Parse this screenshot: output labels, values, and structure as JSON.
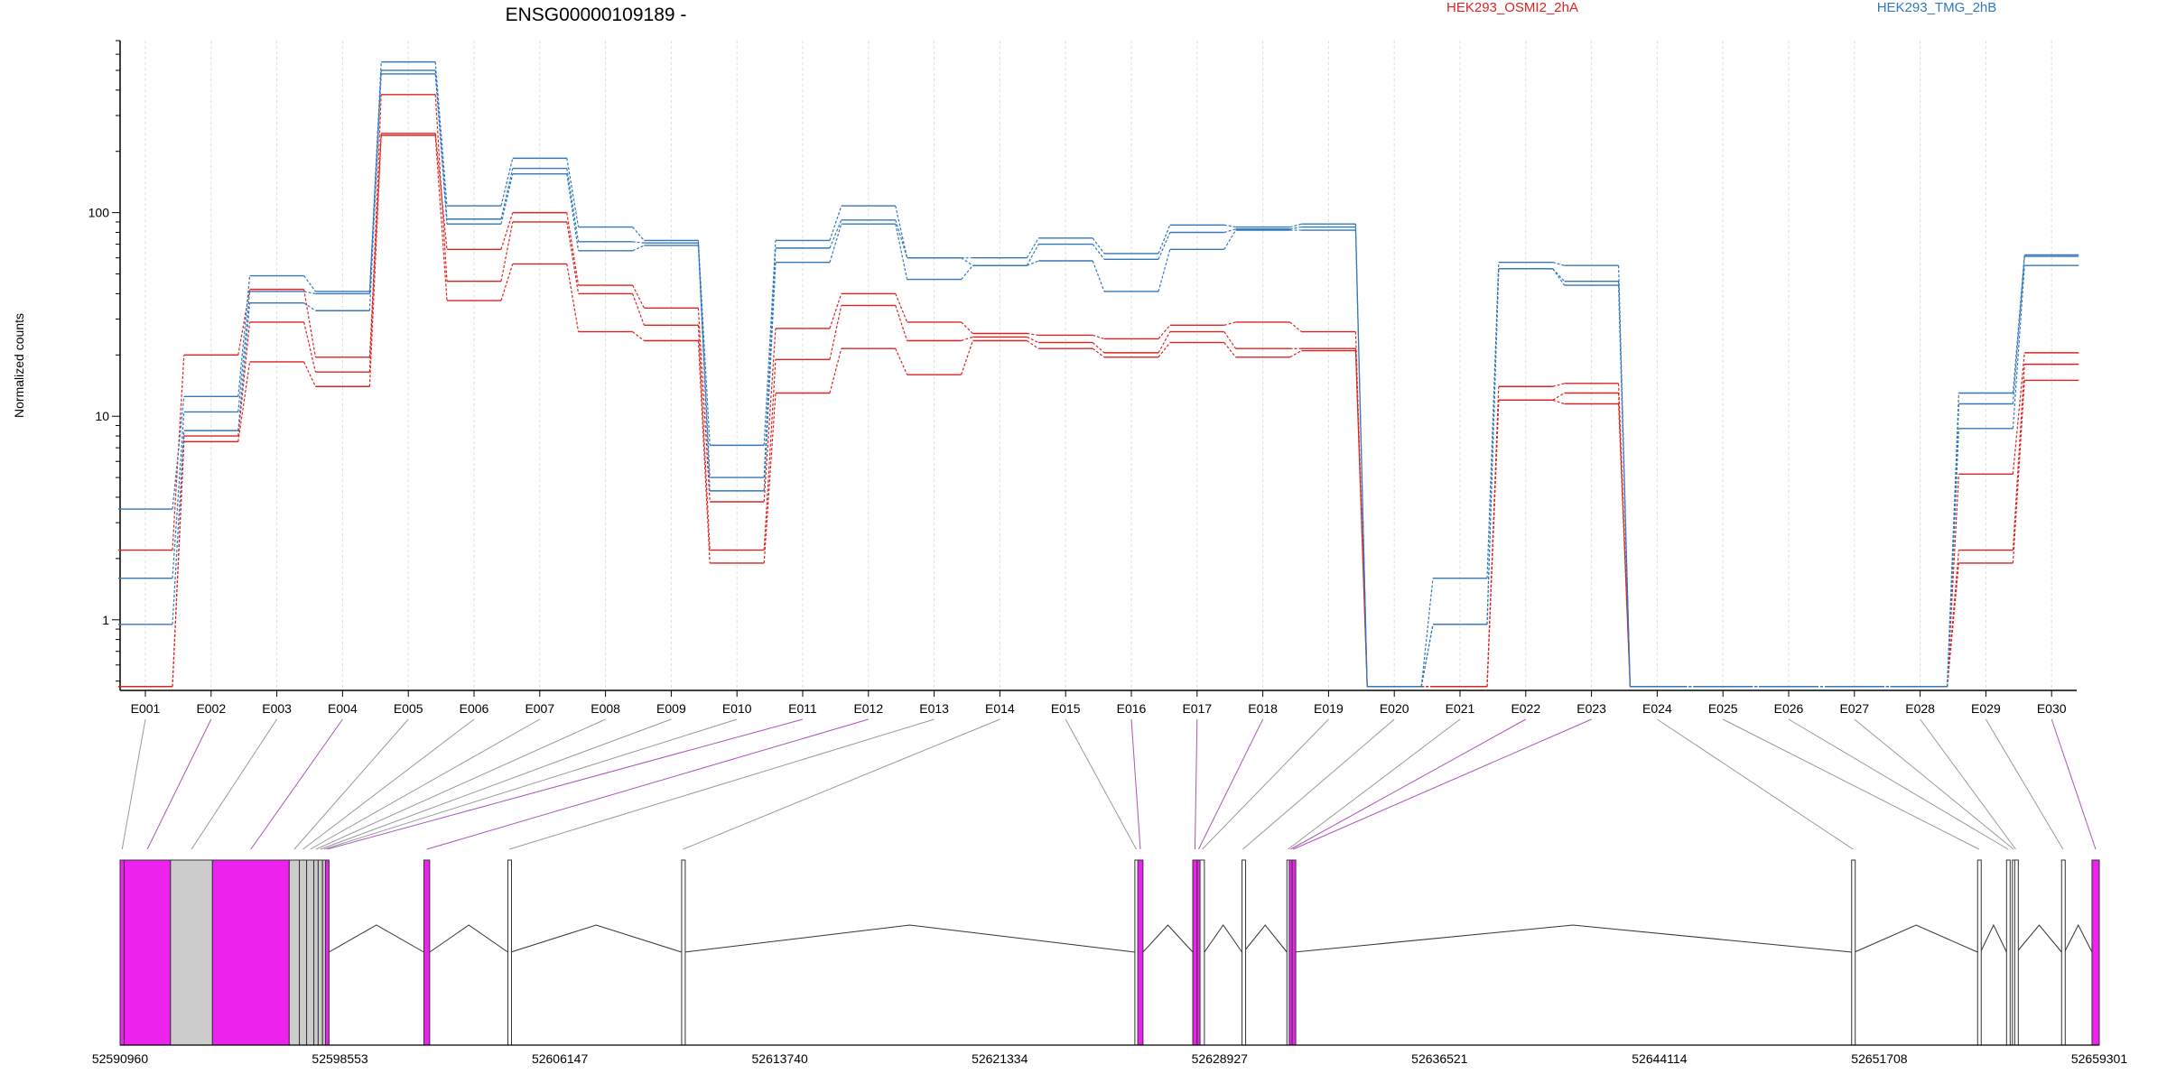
{
  "chart_data": {
    "type": "line",
    "title": "ENSG00000109189 -",
    "ylabel": "Normalized counts",
    "xlabel": "",
    "y_scale": "log",
    "ylim": [
      0.45,
      700
    ],
    "y_ticks": [
      {
        "value": 1,
        "label": "1"
      },
      {
        "value": 10,
        "label": "10"
      },
      {
        "value": 100,
        "label": "100"
      }
    ],
    "grid": "vertical light dotted lines at each exon",
    "legend_placement": "top",
    "colors": {
      "HEK293_OSMI2_2hA": "#dd2222",
      "HEK293_TMG_2hB": "#3377bb",
      "exon_fill": "#ee22ee",
      "exon_other": "#cccccc",
      "connector_sig": "#aa55bb",
      "connector": "#999999"
    },
    "categories": [
      "E001",
      "E002",
      "E003",
      "E004",
      "E005",
      "E006",
      "E007",
      "E008",
      "E009",
      "E010",
      "E011",
      "E012",
      "E013",
      "E014",
      "E015",
      "E016",
      "E017",
      "E018",
      "E019",
      "E020",
      "E021",
      "E022",
      "E023",
      "E024",
      "E025",
      "E026",
      "E027",
      "E028",
      "E029",
      "E030"
    ],
    "series": [
      {
        "name": "HEK293_OSMI2_2hA",
        "group": "HEK293_OSMI2_2hA",
        "values": [
          2.2,
          20,
          42,
          19.5,
          245,
          66,
          100,
          44,
          34,
          3.8,
          27,
          40,
          29,
          25.5,
          25,
          24,
          28,
          29,
          26,
          0.47,
          0.47,
          14,
          14.5,
          0.47,
          0.47,
          0.47,
          0.47,
          0.47,
          5.2,
          20.5
        ]
      },
      {
        "name": "HEK293_OSMI2_2hA",
        "group": "HEK293_OSMI2_2hA",
        "values": [
          0.47,
          8,
          29,
          16.5,
          380,
          46,
          90,
          40,
          28,
          2.2,
          19,
          35,
          23.5,
          24.5,
          23,
          20.5,
          26,
          21.5,
          21.5,
          0.47,
          0.47,
          12,
          13,
          0.47,
          0.47,
          0.47,
          0.47,
          0.47,
          2.2,
          18
        ]
      },
      {
        "name": "HEK293_OSMI2_2hA",
        "group": "HEK293_OSMI2_2hA",
        "values": [
          0.47,
          7.5,
          18.5,
          14,
          240,
          37,
          56,
          26,
          23.5,
          1.9,
          13,
          21.5,
          16,
          23.5,
          21.5,
          19.5,
          23,
          19.5,
          21,
          0.47,
          0.47,
          12,
          11.5,
          0.47,
          0.47,
          0.47,
          0.47,
          0.47,
          1.9,
          15
        ]
      },
      {
        "name": "HEK293_TMG_2hB",
        "group": "HEK293_TMG_2hB",
        "values": [
          3.5,
          12.5,
          49,
          41,
          550,
          108,
          185,
          85,
          73,
          7.2,
          73,
          108,
          60,
          60,
          75,
          63,
          87,
          85,
          88,
          0.47,
          1.6,
          57,
          55,
          0.47,
          0.47,
          0.47,
          0.47,
          0.47,
          13,
          62
        ]
      },
      {
        "name": "HEK293_TMG_2hB",
        "group": "HEK293_TMG_2hB",
        "values": [
          1.6,
          10.5,
          41,
          40,
          500,
          93,
          165,
          72,
          71,
          5,
          67,
          92,
          60,
          55,
          70,
          59,
          80,
          83,
          85,
          0.47,
          0.95,
          53,
          46,
          0.47,
          0.47,
          0.47,
          0.47,
          0.47,
          11.5,
          61
        ]
      },
      {
        "name": "HEK293_TMG_2hB",
        "group": "HEK293_TMG_2hB",
        "values": [
          0.95,
          8.5,
          36,
          33,
          480,
          88,
          155,
          65,
          69,
          4.3,
          57,
          88,
          47,
          55,
          58,
          41,
          66,
          82,
          82,
          0.47,
          0.95,
          53,
          44,
          0.47,
          0.47,
          0.47,
          0.47,
          0.47,
          8.7,
          55
        ]
      }
    ],
    "legend": [
      {
        "label": "HEK293_OSMI2_2hA",
        "color": "#dd2222"
      },
      {
        "label": "HEK293_TMG_2hB",
        "color": "#3377bb"
      }
    ],
    "genomic_axis": {
      "start": 52590960,
      "end": 52659301,
      "tick_labels": [
        "52590960",
        "52598553",
        "52606147",
        "52613740",
        "52621334",
        "52628927",
        "52636521",
        "52644114",
        "52651708",
        "52659301"
      ]
    },
    "exons": [
      {
        "id": "E001",
        "start": 52590960,
        "end": 52591100,
        "color": "#ee22ee",
        "highlight": false
      },
      {
        "id": "E002",
        "start": 52591100,
        "end": 52592700,
        "color": "#ee22ee",
        "highlight": true
      },
      {
        "id": "E003",
        "start": 52592700,
        "end": 52594150,
        "color": "#cccccc",
        "highlight": false
      },
      {
        "id": "E004",
        "start": 52594150,
        "end": 52596800,
        "color": "#ee22ee",
        "highlight": true
      },
      {
        "id": "E005",
        "start": 52596800,
        "end": 52597150,
        "color": "#cccccc",
        "highlight": false
      },
      {
        "id": "E006",
        "start": 52597150,
        "end": 52597400,
        "color": "#cccccc",
        "highlight": false
      },
      {
        "id": "E007",
        "start": 52597400,
        "end": 52597650,
        "color": "#cccccc",
        "highlight": false
      },
      {
        "id": "E008",
        "start": 52597650,
        "end": 52597800,
        "color": "#cccccc",
        "highlight": false
      },
      {
        "id": "E009",
        "start": 52597800,
        "end": 52597950,
        "color": "#cccccc",
        "highlight": false
      },
      {
        "id": "E010",
        "start": 52597950,
        "end": 52598050,
        "color": "#cccccc",
        "highlight": false
      },
      {
        "id": "E011",
        "start": 52598050,
        "end": 52598170,
        "color": "#ee22ee",
        "highlight": true
      },
      {
        "id": "E012",
        "start": 52601450,
        "end": 52601650,
        "color": "#ee22ee",
        "highlight": true
      },
      {
        "id": "E013",
        "start": 52604350,
        "end": 52604450,
        "color": "#ffffff",
        "highlight": false
      },
      {
        "id": "E014",
        "start": 52610350,
        "end": 52610450,
        "color": "#ffffff",
        "highlight": false
      },
      {
        "id": "E015",
        "start": 52626000,
        "end": 52626100,
        "color": "#ffffff",
        "highlight": false
      },
      {
        "id": "E016",
        "start": 52626100,
        "end": 52626280,
        "color": "#ee22ee",
        "highlight": true
      },
      {
        "id": "E017",
        "start": 52628000,
        "end": 52628150,
        "color": "#ee22ee",
        "highlight": true
      },
      {
        "id": "E018",
        "start": 52628150,
        "end": 52628250,
        "color": "#ee22ee",
        "highlight": true
      },
      {
        "id": "E019",
        "start": 52628250,
        "end": 52628400,
        "color": "#ffffff",
        "highlight": false
      },
      {
        "id": "E020",
        "start": 52629700,
        "end": 52629750,
        "color": "#ffffff",
        "highlight": false
      },
      {
        "id": "E021",
        "start": 52631250,
        "end": 52631330,
        "color": "#ffffff",
        "highlight": false
      },
      {
        "id": "E022",
        "start": 52631330,
        "end": 52631430,
        "color": "#ee22ee",
        "highlight": true
      },
      {
        "id": "E023",
        "start": 52631430,
        "end": 52631500,
        "color": "#ee22ee",
        "highlight": true
      },
      {
        "id": "E024",
        "start": 52650750,
        "end": 52650850,
        "color": "#ffffff",
        "highlight": false
      },
      {
        "id": "E025",
        "start": 52655100,
        "end": 52655200,
        "color": "#ffffff",
        "highlight": false
      },
      {
        "id": "E026",
        "start": 52656100,
        "end": 52656200,
        "color": "#ffffff",
        "highlight": false
      },
      {
        "id": "E027",
        "start": 52656300,
        "end": 52656380,
        "color": "#ffffff",
        "highlight": false
      },
      {
        "id": "E028",
        "start": 52656380,
        "end": 52656450,
        "color": "#ffffff",
        "highlight": false
      },
      {
        "id": "E029",
        "start": 52658000,
        "end": 52658100,
        "color": "#ffffff",
        "highlight": false
      },
      {
        "id": "E030",
        "start": 52659050,
        "end": 52659301,
        "color": "#ee22ee",
        "highlight": true
      }
    ]
  }
}
